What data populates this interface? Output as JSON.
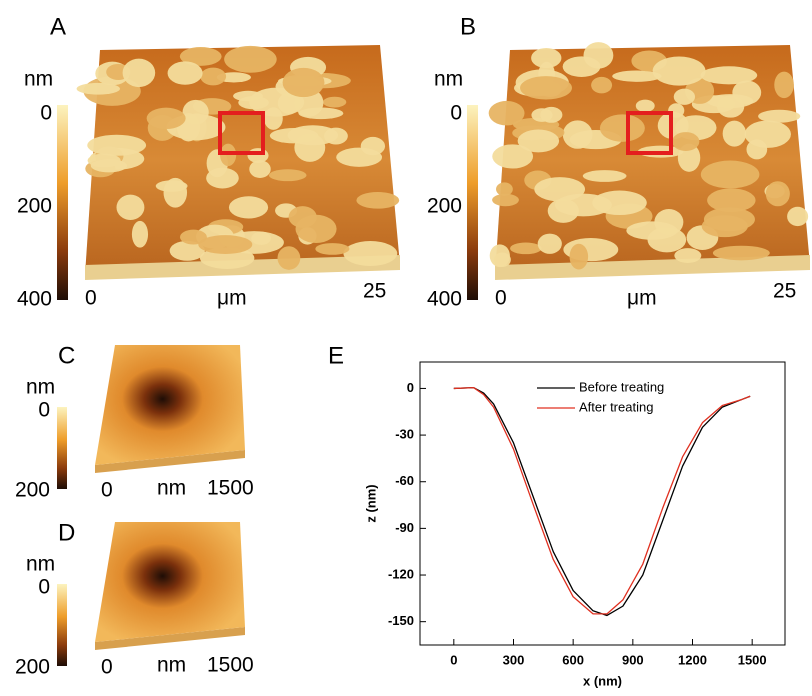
{
  "panels": {
    "A": {
      "label": "A",
      "unit": "nm",
      "scale": [
        0,
        200,
        400
      ],
      "axis_start": 0,
      "axis_unit": "μm",
      "axis_end": 25
    },
    "B": {
      "label": "B",
      "unit": "nm",
      "scale": [
        0,
        200,
        400
      ],
      "axis_start": 0,
      "axis_unit": "μm",
      "axis_end": 25
    },
    "C": {
      "label": "C",
      "unit": "nm",
      "scale": [
        0,
        200
      ],
      "axis_start": 0,
      "axis_unit": "nm",
      "axis_end": 1500
    },
    "D": {
      "label": "D",
      "unit": "nm",
      "scale": [
        0,
        200
      ],
      "axis_start": 0,
      "axis_unit": "nm",
      "axis_end": 1500
    }
  },
  "chart_data": {
    "type": "line",
    "label": "E",
    "xlabel": "x (nm)",
    "ylabel": "z (nm)",
    "x": [
      0,
      100,
      150,
      200,
      300,
      400,
      500,
      600,
      700,
      770,
      850,
      950,
      1050,
      1150,
      1250,
      1350,
      1450,
      1490
    ],
    "series": [
      {
        "name": "Before treating",
        "color": "#000000",
        "values": [
          0,
          0.5,
          -3,
          -10,
          -35,
          -70,
          -105,
          -130,
          -143,
          -146,
          -140,
          -120,
          -85,
          -50,
          -25,
          -12,
          -7,
          -5
        ]
      },
      {
        "name": "After treating",
        "color": "#e03020",
        "values": [
          0,
          0.5,
          -4,
          -12,
          -39,
          -75,
          -110,
          -134,
          -145,
          -145,
          -136,
          -113,
          -77,
          -44,
          -22,
          -11,
          -7,
          -5
        ]
      }
    ],
    "xlim": [
      -170,
      1665
    ],
    "ylim": [
      -165,
      17
    ],
    "xticks": [
      0,
      300,
      600,
      900,
      1200,
      1500
    ],
    "yticks": [
      0,
      -30,
      -60,
      -90,
      -120,
      -150
    ],
    "legend": "upper center"
  }
}
